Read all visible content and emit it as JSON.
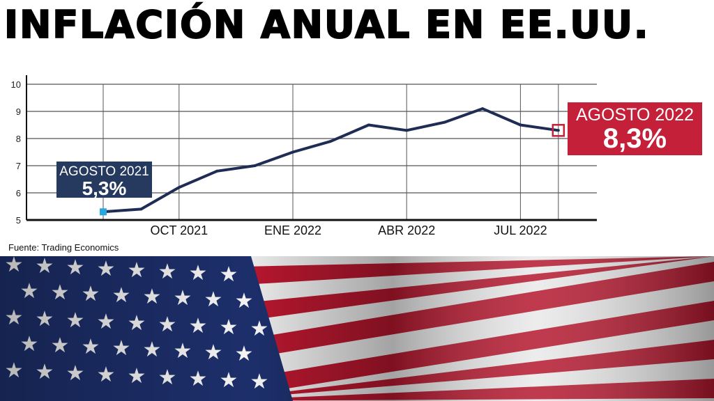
{
  "title": "INFLACIÓN ANUAL EN EE.UU.",
  "source": "Fuente: Trading Economics",
  "chart_data": {
    "type": "line",
    "title": "INFLACIÓN ANUAL EN EE.UU.",
    "x": [
      "2021-08",
      "2021-09",
      "2021-10",
      "2021-11",
      "2021-12",
      "2022-01",
      "2022-02",
      "2022-03",
      "2022-04",
      "2022-05",
      "2022-06",
      "2022-07",
      "2022-08"
    ],
    "values": [
      5.3,
      5.4,
      6.2,
      6.8,
      7.0,
      7.5,
      7.9,
      8.5,
      8.3,
      8.6,
      9.1,
      8.5,
      8.3
    ],
    "ylim": [
      5,
      10
    ],
    "yticks": [
      "5",
      "6",
      "7",
      "8",
      "9",
      "10"
    ],
    "xticks": [
      {
        "label": "OCT 2021",
        "x": "2021-10"
      },
      {
        "label": "ENE 2022",
        "x": "2022-01"
      },
      {
        "label": "ABR 2022",
        "x": "2022-04"
      },
      {
        "label": "JUL 2022",
        "x": "2022-07"
      }
    ],
    "grid": true,
    "line_color": "#1f2d54",
    "annotations": [
      {
        "x": "2021-08",
        "title": "AGOSTO 2021",
        "value": "5,3%",
        "color": "#26395f",
        "marker_color": "#29a8e0"
      },
      {
        "x": "2022-08",
        "title": "AGOSTO 2022",
        "value": "8,3%",
        "color": "#c4203a"
      }
    ]
  }
}
